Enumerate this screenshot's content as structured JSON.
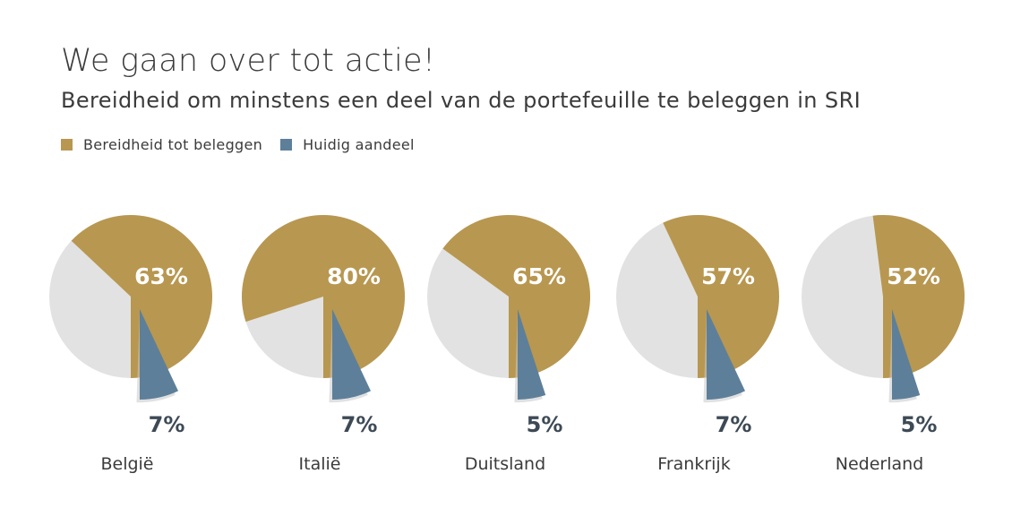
{
  "title": "We gaan over tot actie!",
  "subtitle": "Bereidheid om minstens een deel van de portefeuille te beleggen in SRI",
  "legend": [
    {
      "label": "Bereidheid tot beleggen",
      "color": "#b89750"
    },
    {
      "label": "Huidig aandeel",
      "color": "#5d7f9a"
    }
  ],
  "colors": {
    "willing": "#b89750",
    "current": "#5d7f9a",
    "rest": "#e2e2e2",
    "shadow": "#c8c8c8"
  },
  "chart_data": {
    "type": "pie",
    "series": [
      {
        "name": "Bereidheid tot beleggen",
        "values": [
          63,
          80,
          65,
          57,
          52
        ],
        "labels": [
          "63%",
          "80%",
          "65%",
          "57%",
          "52%"
        ]
      },
      {
        "name": "Huidig aandeel",
        "values": [
          7,
          7,
          5,
          7,
          5
        ],
        "labels": [
          "7%",
          "7%",
          "5%",
          "7%",
          "5%"
        ]
      }
    ],
    "categories": [
      "België",
      "Italië",
      "Duitsland",
      "Frankrijk",
      "Nederland"
    ]
  }
}
